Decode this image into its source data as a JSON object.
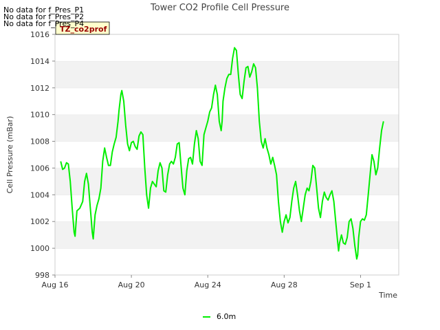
{
  "chart_data": {
    "type": "line",
    "title": "Tower CO2 Profile Cell Pressure",
    "xlabel": "Time",
    "ylabel": "Cell Pressure (mBar)",
    "ylim": [
      998,
      1016
    ],
    "yticks": [
      998,
      1000,
      1002,
      1004,
      1006,
      1008,
      1010,
      1012,
      1014,
      1016
    ],
    "xlim_days": [
      16,
      34
    ],
    "xticks": [
      {
        "day": 16,
        "label": "Aug 16"
      },
      {
        "day": 20,
        "label": "Aug 20"
      },
      {
        "day": 24,
        "label": "Aug 24"
      },
      {
        "day": 28,
        "label": "Aug 28"
      },
      {
        "day": 32,
        "label": "Sep 1"
      }
    ],
    "grid": "horizontal bands",
    "legend_position": "bottom-center",
    "annotations": [
      "No data for f_Pres_P1",
      "No data for f_Pres_P2",
      "No data for f_Pres_P4"
    ],
    "tag_label": "TZ_co2prof",
    "series": [
      {
        "name": "6.0m",
        "color": "#00ee00",
        "points": [
          [
            16.3,
            1006.5
          ],
          [
            16.4,
            1005.9
          ],
          [
            16.5,
            1006.0
          ],
          [
            16.6,
            1006.4
          ],
          [
            16.7,
            1006.3
          ],
          [
            16.8,
            1005.0
          ],
          [
            16.9,
            1003.0
          ],
          [
            17.0,
            1001.2
          ],
          [
            17.05,
            1000.9
          ],
          [
            17.15,
            1002.8
          ],
          [
            17.3,
            1003.0
          ],
          [
            17.45,
            1003.5
          ],
          [
            17.55,
            1005.0
          ],
          [
            17.65,
            1005.6
          ],
          [
            17.75,
            1004.8
          ],
          [
            17.85,
            1003.0
          ],
          [
            17.95,
            1001.2
          ],
          [
            18.0,
            1000.7
          ],
          [
            18.1,
            1002.5
          ],
          [
            18.2,
            1003.2
          ],
          [
            18.3,
            1003.7
          ],
          [
            18.4,
            1004.5
          ],
          [
            18.5,
            1006.5
          ],
          [
            18.6,
            1007.5
          ],
          [
            18.7,
            1006.8
          ],
          [
            18.8,
            1006.2
          ],
          [
            18.9,
            1006.2
          ],
          [
            19.0,
            1007.2
          ],
          [
            19.1,
            1007.8
          ],
          [
            19.2,
            1008.3
          ],
          [
            19.3,
            1009.5
          ],
          [
            19.35,
            1010.3
          ],
          [
            19.45,
            1011.5
          ],
          [
            19.5,
            1011.8
          ],
          [
            19.6,
            1011.0
          ],
          [
            19.7,
            1009.2
          ],
          [
            19.8,
            1007.8
          ],
          [
            19.9,
            1007.3
          ],
          [
            20.0,
            1007.9
          ],
          [
            20.1,
            1008.0
          ],
          [
            20.2,
            1007.6
          ],
          [
            20.3,
            1007.4
          ],
          [
            20.4,
            1008.4
          ],
          [
            20.5,
            1008.7
          ],
          [
            20.6,
            1008.5
          ],
          [
            20.7,
            1006.0
          ],
          [
            20.8,
            1004.0
          ],
          [
            20.9,
            1003.0
          ],
          [
            21.0,
            1004.5
          ],
          [
            21.1,
            1005.0
          ],
          [
            21.2,
            1004.8
          ],
          [
            21.3,
            1004.6
          ],
          [
            21.4,
            1005.8
          ],
          [
            21.5,
            1006.4
          ],
          [
            21.6,
            1006.0
          ],
          [
            21.7,
            1004.3
          ],
          [
            21.8,
            1004.2
          ],
          [
            21.9,
            1005.5
          ],
          [
            22.0,
            1006.3
          ],
          [
            22.1,
            1006.5
          ],
          [
            22.2,
            1006.3
          ],
          [
            22.3,
            1006.8
          ],
          [
            22.4,
            1007.8
          ],
          [
            22.5,
            1007.9
          ],
          [
            22.6,
            1006.2
          ],
          [
            22.7,
            1004.5
          ],
          [
            22.8,
            1004.0
          ],
          [
            22.9,
            1005.8
          ],
          [
            23.0,
            1006.7
          ],
          [
            23.1,
            1006.8
          ],
          [
            23.2,
            1006.3
          ],
          [
            23.3,
            1007.8
          ],
          [
            23.4,
            1008.8
          ],
          [
            23.5,
            1008.2
          ],
          [
            23.6,
            1006.5
          ],
          [
            23.7,
            1006.2
          ],
          [
            23.8,
            1008.5
          ],
          [
            23.9,
            1009.0
          ],
          [
            24.0,
            1009.5
          ],
          [
            24.1,
            1010.2
          ],
          [
            24.2,
            1010.5
          ],
          [
            24.3,
            1011.5
          ],
          [
            24.4,
            1012.2
          ],
          [
            24.5,
            1011.5
          ],
          [
            24.6,
            1009.5
          ],
          [
            24.7,
            1008.8
          ],
          [
            24.75,
            1009.5
          ],
          [
            24.8,
            1011.0
          ],
          [
            24.9,
            1012.0
          ],
          [
            25.0,
            1012.7
          ],
          [
            25.1,
            1013.0
          ],
          [
            25.2,
            1013.0
          ],
          [
            25.3,
            1014.2
          ],
          [
            25.4,
            1015.0
          ],
          [
            25.5,
            1014.8
          ],
          [
            25.6,
            1013.0
          ],
          [
            25.7,
            1011.5
          ],
          [
            25.8,
            1011.2
          ],
          [
            25.9,
            1012.5
          ],
          [
            26.0,
            1013.5
          ],
          [
            26.1,
            1013.6
          ],
          [
            26.2,
            1012.8
          ],
          [
            26.3,
            1013.2
          ],
          [
            26.4,
            1013.8
          ],
          [
            26.5,
            1013.5
          ],
          [
            26.6,
            1012.0
          ],
          [
            26.7,
            1009.5
          ],
          [
            26.8,
            1008.0
          ],
          [
            26.9,
            1007.5
          ],
          [
            27.0,
            1008.2
          ],
          [
            27.1,
            1007.5
          ],
          [
            27.2,
            1007.0
          ],
          [
            27.3,
            1006.3
          ],
          [
            27.4,
            1006.8
          ],
          [
            27.5,
            1006.2
          ],
          [
            27.6,
            1005.5
          ],
          [
            27.7,
            1003.5
          ],
          [
            27.8,
            1002.0
          ],
          [
            27.9,
            1001.2
          ],
          [
            28.0,
            1002.0
          ],
          [
            28.1,
            1002.5
          ],
          [
            28.2,
            1001.9
          ],
          [
            28.3,
            1002.3
          ],
          [
            28.4,
            1003.5
          ],
          [
            28.5,
            1004.5
          ],
          [
            28.6,
            1005.0
          ],
          [
            28.7,
            1004.0
          ],
          [
            28.8,
            1002.8
          ],
          [
            28.9,
            1002.0
          ],
          [
            29.0,
            1003.0
          ],
          [
            29.1,
            1004.0
          ],
          [
            29.2,
            1004.5
          ],
          [
            29.3,
            1004.3
          ],
          [
            29.4,
            1005.0
          ],
          [
            29.5,
            1006.2
          ],
          [
            29.6,
            1006.0
          ],
          [
            29.7,
            1004.5
          ],
          [
            29.8,
            1003.0
          ],
          [
            29.9,
            1002.3
          ],
          [
            30.0,
            1003.5
          ],
          [
            30.1,
            1004.2
          ],
          [
            30.2,
            1003.8
          ],
          [
            30.3,
            1003.6
          ],
          [
            30.4,
            1004.0
          ],
          [
            30.5,
            1004.3
          ],
          [
            30.6,
            1003.5
          ],
          [
            30.7,
            1002.0
          ],
          [
            30.8,
            1000.5
          ],
          [
            30.85,
            999.8
          ],
          [
            30.9,
            1000.4
          ],
          [
            31.0,
            1001.0
          ],
          [
            31.1,
            1000.4
          ],
          [
            31.2,
            1000.3
          ],
          [
            31.3,
            1000.8
          ],
          [
            31.4,
            1002.0
          ],
          [
            31.5,
            1002.2
          ],
          [
            31.6,
            1001.5
          ],
          [
            31.7,
            1000.2
          ],
          [
            31.8,
            999.2
          ],
          [
            31.85,
            999.5
          ],
          [
            31.9,
            1000.8
          ],
          [
            32.0,
            1002.0
          ],
          [
            32.1,
            1002.2
          ],
          [
            32.2,
            1002.1
          ],
          [
            32.3,
            1002.5
          ],
          [
            32.4,
            1004.0
          ],
          [
            32.5,
            1005.5
          ],
          [
            32.6,
            1007.0
          ],
          [
            32.7,
            1006.5
          ],
          [
            32.8,
            1005.5
          ],
          [
            32.9,
            1006.0
          ],
          [
            33.0,
            1007.5
          ],
          [
            33.1,
            1008.8
          ],
          [
            33.2,
            1009.5
          ]
        ]
      }
    ]
  }
}
